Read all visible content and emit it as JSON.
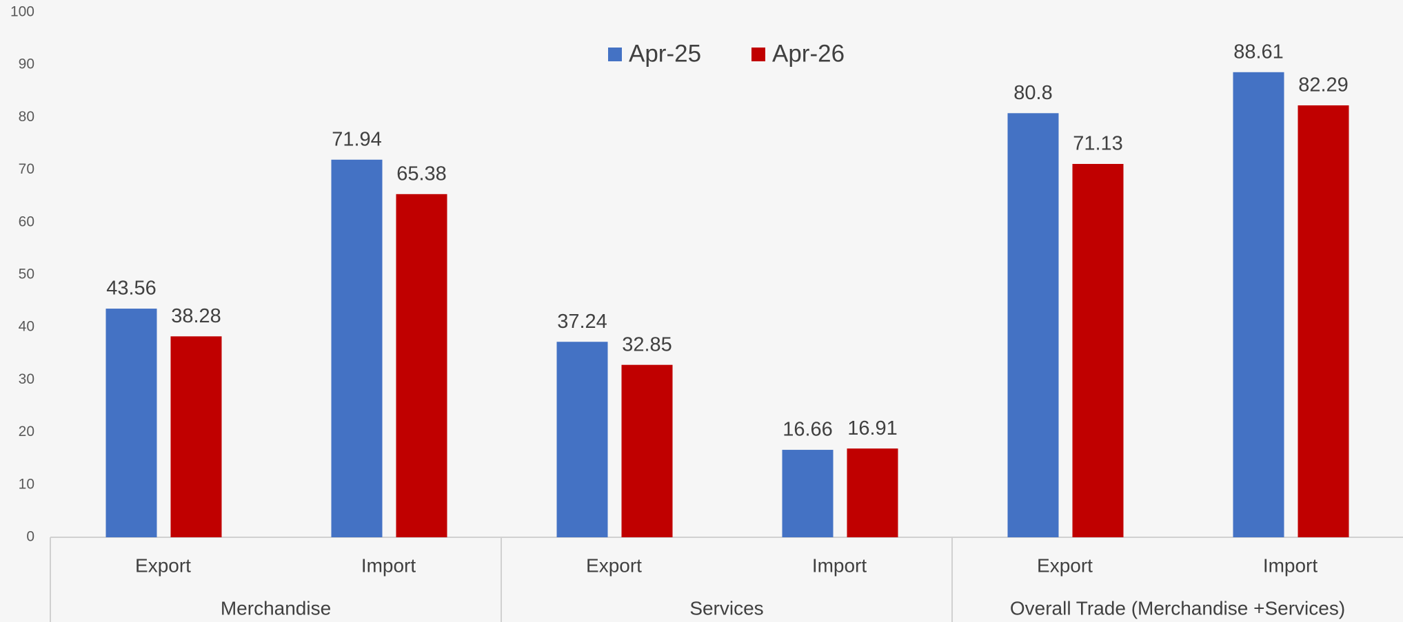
{
  "chart_data": {
    "type": "bar",
    "groups": [
      "Merchandise",
      "Services",
      "Overall Trade (Merchandise +Services)"
    ],
    "categories": [
      "Export",
      "Import",
      "Export",
      "Import",
      "Export",
      "Import"
    ],
    "series": [
      {
        "name": "Apr-25",
        "color": "#4472c4",
        "values": [
          43.56,
          71.94,
          37.24,
          16.66,
          80.8,
          88.61
        ]
      },
      {
        "name": "Apr-26",
        "color": "#c00000",
        "values": [
          38.28,
          65.38,
          32.85,
          16.91,
          71.13,
          82.29
        ]
      }
    ],
    "ylim": [
      0,
      100
    ],
    "yticks": [
      0,
      10,
      20,
      30,
      40,
      50,
      60,
      70,
      80,
      90,
      100
    ],
    "grid": false,
    "legend": "top"
  }
}
